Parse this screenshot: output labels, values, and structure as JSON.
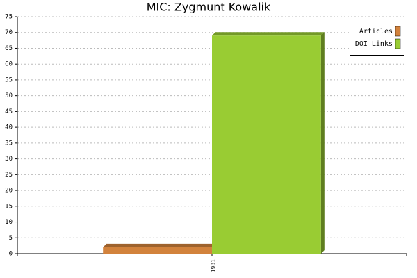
{
  "chart_data": {
    "type": "bar",
    "title": "MIC: Zygmunt Kowalik",
    "categories": [
      "1981"
    ],
    "series": [
      {
        "name": "Articles",
        "color": "#d2823c",
        "values": [
          2
        ]
      },
      {
        "name": "DOI Links",
        "color": "#99cc33",
        "values": [
          69
        ]
      }
    ],
    "ylim": [
      0,
      75
    ],
    "yticks": [
      0,
      5,
      10,
      15,
      20,
      25,
      30,
      35,
      40,
      45,
      50,
      55,
      60,
      65,
      70,
      75
    ],
    "grid": true,
    "legend": "top-right"
  }
}
